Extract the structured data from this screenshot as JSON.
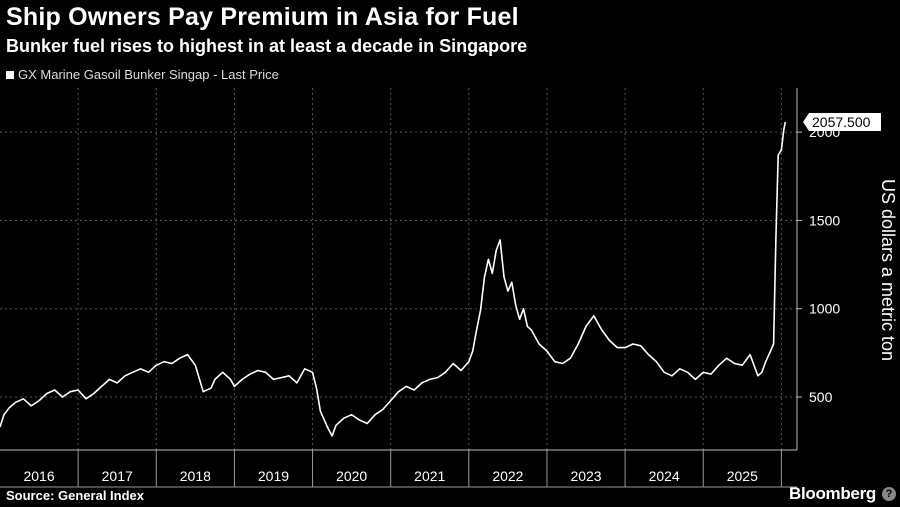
{
  "header": {
    "title": "Ship Owners Pay Premium in Asia for Fuel",
    "subtitle": "Bunker fuel rises to highest in at least a decade in Singapore"
  },
  "legend": {
    "label": "GX Marine Gasoil Bunker Singap - Last Price"
  },
  "footer": {
    "source": "Source: General Index",
    "brand": "Bloomberg",
    "badge_icon": "question-icon"
  },
  "colors": {
    "background": "#000000",
    "line": "#ffffff",
    "grid": "#555555"
  },
  "chart_data": {
    "type": "line",
    "title": "Ship Owners Pay Premium in Asia for Fuel",
    "subtitle": "Bunker fuel rises to highest in at least a decade in Singapore",
    "ylabel": "US dollars a metric ton",
    "xlabel": "",
    "x_tick_labels": [
      "2016",
      "2017",
      "2018",
      "2019",
      "2020",
      "2021",
      "2022",
      "2023",
      "2024",
      "2025"
    ],
    "y_tick_labels": [
      "500",
      "1000",
      "1500",
      "2000"
    ],
    "y_ticks": [
      500,
      1000,
      1500,
      2000
    ],
    "xlim": [
      2016.0,
      2026.2
    ],
    "ylim": [
      200,
      2250
    ],
    "grid": true,
    "last_value_label": "2057.500",
    "series": [
      {
        "name": "GX Marine Gasoil Bunker Singap - Last Price",
        "x": [
          2016.0,
          2016.05,
          2016.12,
          2016.2,
          2016.3,
          2016.4,
          2016.5,
          2016.6,
          2016.7,
          2016.8,
          2016.9,
          2017.0,
          2017.1,
          2017.2,
          2017.3,
          2017.4,
          2017.5,
          2017.6,
          2017.7,
          2017.8,
          2017.9,
          2018.0,
          2018.1,
          2018.2,
          2018.3,
          2018.4,
          2018.5,
          2018.6,
          2018.7,
          2018.75,
          2018.8,
          2018.85,
          2018.95,
          2019.0,
          2019.1,
          2019.2,
          2019.3,
          2019.4,
          2019.5,
          2019.6,
          2019.7,
          2019.8,
          2019.9,
          2020.0,
          2020.05,
          2020.1,
          2020.2,
          2020.25,
          2020.3,
          2020.4,
          2020.5,
          2020.6,
          2020.7,
          2020.8,
          2020.9,
          2021.0,
          2021.1,
          2021.2,
          2021.3,
          2021.4,
          2021.5,
          2021.6,
          2021.7,
          2021.8,
          2021.9,
          2022.0,
          2022.05,
          2022.1,
          2022.15,
          2022.2,
          2022.25,
          2022.3,
          2022.35,
          2022.4,
          2022.45,
          2022.5,
          2022.55,
          2022.6,
          2022.65,
          2022.7,
          2022.75,
          2022.8,
          2022.9,
          2023.0,
          2023.1,
          2023.2,
          2023.3,
          2023.4,
          2023.5,
          2023.6,
          2023.7,
          2023.8,
          2023.9,
          2024.0,
          2024.1,
          2024.2,
          2024.3,
          2024.4,
          2024.5,
          2024.6,
          2024.7,
          2024.8,
          2024.9,
          2025.0,
          2025.1,
          2025.2,
          2025.3,
          2025.4,
          2025.5,
          2025.6,
          2025.7,
          2025.75,
          2025.8,
          2025.85,
          2025.9,
          2025.93,
          2025.96,
          2026.0,
          2026.03,
          2026.05
        ],
        "values": [
          330,
          400,
          440,
          470,
          490,
          450,
          480,
          520,
          540,
          500,
          530,
          540,
          490,
          520,
          560,
          600,
          580,
          620,
          640,
          660,
          640,
          680,
          700,
          690,
          720,
          740,
          680,
          530,
          550,
          600,
          620,
          640,
          600,
          560,
          600,
          630,
          650,
          640,
          600,
          610,
          620,
          580,
          660,
          640,
          550,
          420,
          320,
          280,
          340,
          380,
          400,
          370,
          350,
          400,
          430,
          480,
          530,
          560,
          540,
          580,
          600,
          610,
          640,
          690,
          650,
          700,
          760,
          880,
          990,
          1180,
          1280,
          1200,
          1330,
          1390,
          1180,
          1100,
          1150,
          1020,
          940,
          1000,
          900,
          880,
          800,
          760,
          700,
          690,
          720,
          800,
          900,
          960,
          880,
          820,
          780,
          780,
          800,
          790,
          740,
          700,
          640,
          620,
          660,
          640,
          600,
          640,
          630,
          680,
          720,
          690,
          680,
          740,
          620,
          640,
          700,
          750,
          800,
          1400,
          1870,
          1900,
          2010,
          2057.5
        ]
      }
    ]
  }
}
